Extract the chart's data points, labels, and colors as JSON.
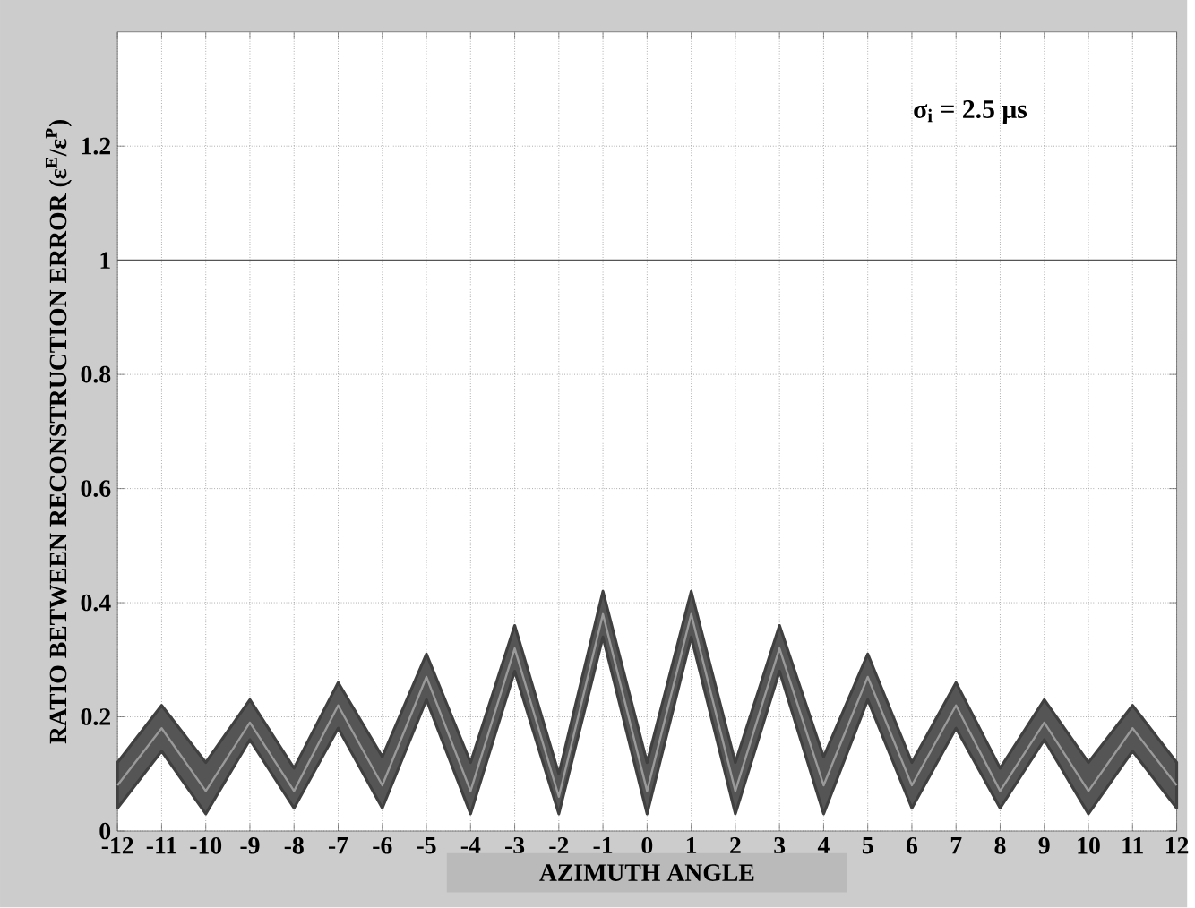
{
  "chart_data": {
    "type": "line",
    "annotations": [
      "σ$_{i}$ = 2.5 μs"
    ],
    "xlabel": "AZIMUTH ANGLE",
    "ylabel": "RATIO BETWEEN RECONSTRUCTION ERROR (ε$^{E}$/ε$^{P}$)",
    "x": [
      -12,
      -11,
      -10,
      -9,
      -8,
      -7,
      -6,
      -5,
      -4,
      -3,
      -2,
      -1,
      0,
      1,
      2,
      3,
      4,
      5,
      6,
      7,
      8,
      9,
      10,
      11,
      12
    ],
    "series": [
      {
        "color": "#9a9a9a",
        "values": [
          0.08,
          0.18,
          0.07,
          0.19,
          0.07,
          0.22,
          0.08,
          0.27,
          0.07,
          0.32,
          0.06,
          0.38,
          0.07,
          0.38,
          0.07,
          0.32,
          0.08,
          0.27,
          0.08,
          0.22,
          0.07,
          0.19,
          0.07,
          0.18,
          0.08
        ],
        "lower": [
          0.04,
          0.14,
          0.03,
          0.16,
          0.04,
          0.18,
          0.04,
          0.23,
          0.03,
          0.28,
          0.03,
          0.34,
          0.03,
          0.34,
          0.03,
          0.28,
          0.03,
          0.23,
          0.04,
          0.18,
          0.04,
          0.16,
          0.03,
          0.14,
          0.04
        ],
        "upper": [
          0.12,
          0.22,
          0.12,
          0.23,
          0.11,
          0.26,
          0.13,
          0.31,
          0.12,
          0.36,
          0.1,
          0.42,
          0.12,
          0.42,
          0.12,
          0.36,
          0.13,
          0.31,
          0.12,
          0.26,
          0.11,
          0.23,
          0.12,
          0.22,
          0.12
        ]
      }
    ],
    "ref_lines": [
      {
        "axis": "y",
        "value": 1,
        "color": "#555555"
      }
    ],
    "xlim": [
      -12,
      12
    ],
    "ylim": [
      0,
      1.4
    ],
    "xticks": [
      -12,
      -11,
      -10,
      -9,
      -8,
      -7,
      -6,
      -5,
      -4,
      -3,
      -2,
      -1,
      0,
      1,
      2,
      3,
      4,
      5,
      6,
      7,
      8,
      9,
      10,
      11,
      12
    ],
    "yticks": [
      0,
      0.2,
      0.4,
      0.6,
      0.8,
      1,
      1.2
    ],
    "grid": true,
    "marker": "none",
    "line_style": "solid"
  }
}
